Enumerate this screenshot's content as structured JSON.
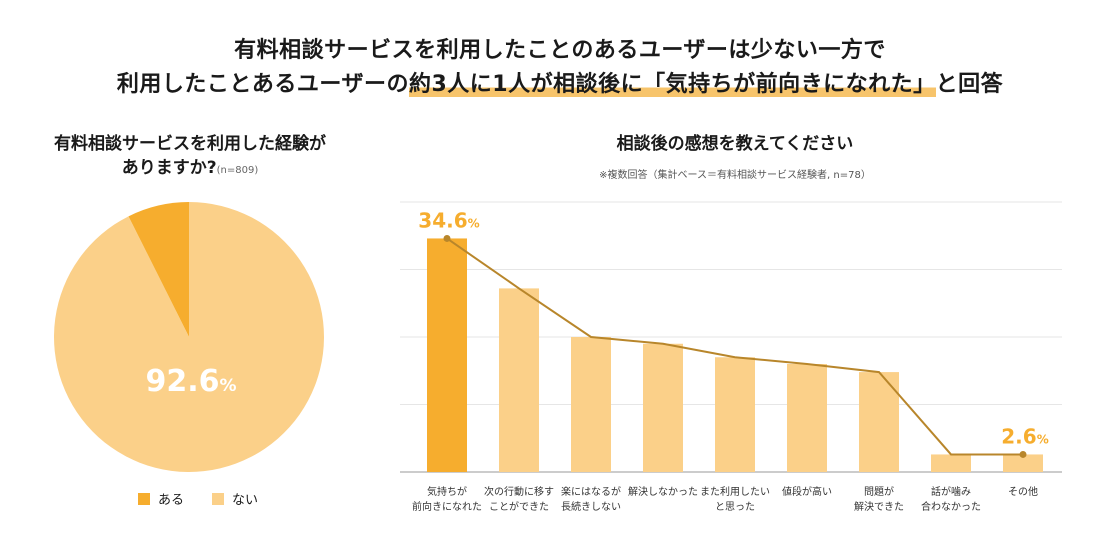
{
  "headline": {
    "line1": "有料相談サービスを利用したことのあるユーザーは少ない一方で",
    "line2_pre": "利用したことあるユーザーの",
    "line2_highlight": "約3人に1人が相談後に「気持ちが前向きになれた」",
    "line2_post": "と回答"
  },
  "colors": {
    "primary": "#f6ad2e",
    "secondary": "#fbd089",
    "line": "#b8862b",
    "grid": "#e6e6e6"
  },
  "chart_data": [
    {
      "type": "pie",
      "title": "有料相談サービスを利用した経験が",
      "title_line2": "ありますか?",
      "note": "(n=809)",
      "categories": [
        "ある",
        "ない"
      ],
      "values": [
        7.4,
        92.6
      ],
      "value_label": "92.6",
      "unit": "%",
      "legend_position": "bottom"
    },
    {
      "type": "bar",
      "title": "相談後の感想を教えてください",
      "note": "※複数回答（集計ベース＝有料相談サービス経験者, n=78）",
      "categories": [
        [
          "気持ちが",
          "前向きになれた"
        ],
        [
          "次の行動に移す",
          "ことができた"
        ],
        [
          "楽にはなるが",
          "長続きしない"
        ],
        [
          "解決しなかった"
        ],
        [
          "また利用したい",
          "と思った"
        ],
        [
          "値段が高い"
        ],
        [
          "問題が",
          "解決できた"
        ],
        [
          "話が噛み",
          "合わなかった"
        ],
        [
          "その他"
        ]
      ],
      "values": [
        34.6,
        27.2,
        20.0,
        19.0,
        17.0,
        16.0,
        14.8,
        2.6,
        2.6
      ],
      "labels": [
        {
          "index": 0,
          "value": "34.6",
          "unit": "%"
        },
        {
          "index": 8,
          "value": "2.6",
          "unit": "%"
        }
      ],
      "ylim": [
        0,
        40
      ],
      "grid": true,
      "line_overlay": true
    }
  ]
}
